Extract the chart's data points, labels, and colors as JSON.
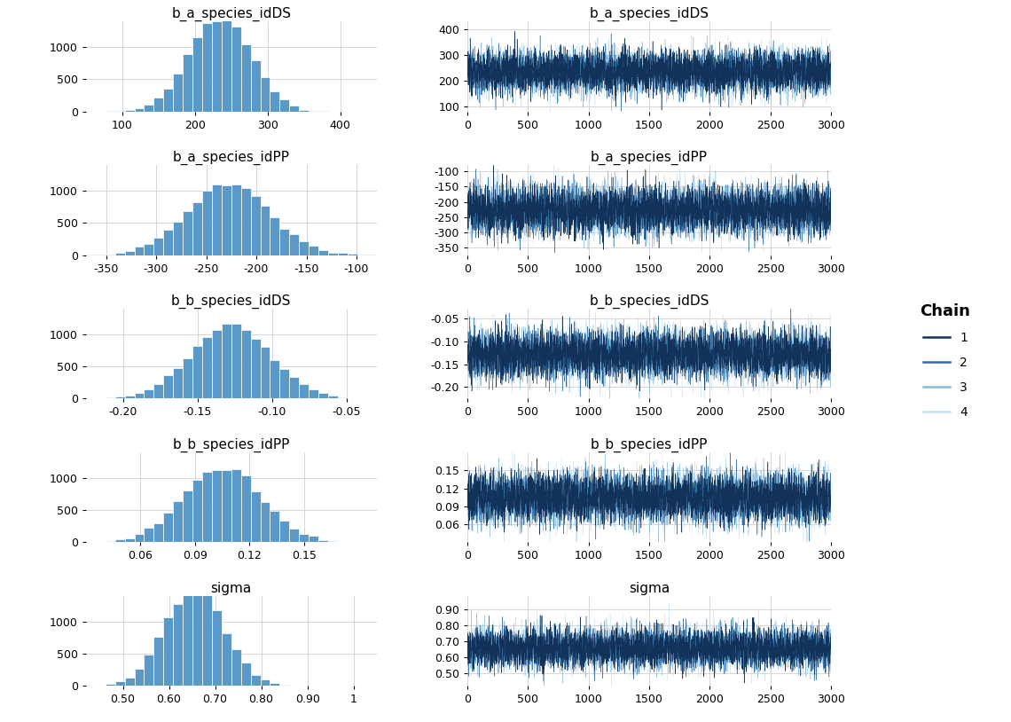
{
  "params": [
    {
      "name": "b_a_species_idDS",
      "hist_mean": 235,
      "hist_std": 40,
      "hist_xlim": [
        50,
        450
      ],
      "hist_xticks": [
        100,
        200,
        300,
        400
      ],
      "hist_ylim": [
        0,
        1400
      ],
      "hist_yticks": [
        0,
        500,
        1000
      ],
      "trace_mean": 235,
      "trace_std": 40,
      "trace_ylim": [
        80,
        430
      ],
      "trace_yticks": [
        100,
        200,
        300,
        400
      ]
    },
    {
      "name": "b_a_species_idPP",
      "hist_mean": -228,
      "hist_std": 38,
      "hist_xlim": [
        -370,
        -80
      ],
      "hist_xticks": [
        -350,
        -300,
        -250,
        -200,
        -150,
        -100
      ],
      "hist_ylim": [
        0,
        1400
      ],
      "hist_yticks": [
        0,
        500,
        1000
      ],
      "trace_mean": -228,
      "trace_std": 38,
      "trace_ylim": [
        -375,
        -80
      ],
      "trace_yticks": [
        -350,
        -300,
        -250,
        -200,
        -150,
        -100
      ]
    },
    {
      "name": "b_b_species_idDS",
      "hist_mean": -0.128,
      "hist_std": 0.025,
      "hist_xlim": [
        -0.225,
        -0.03
      ],
      "hist_xticks": [
        -0.2,
        -0.15,
        -0.1,
        -0.05
      ],
      "hist_ylim": [
        0,
        1400
      ],
      "hist_yticks": [
        0,
        500,
        1000
      ],
      "trace_mean": -0.128,
      "trace_std": 0.025,
      "trace_ylim": [
        -0.225,
        -0.03
      ],
      "trace_yticks": [
        -0.2,
        -0.15,
        -0.1,
        -0.05
      ]
    },
    {
      "name": "b_b_species_idPP",
      "hist_mean": 0.105,
      "hist_std": 0.02,
      "hist_xlim": [
        0.03,
        0.19
      ],
      "hist_xticks": [
        0.06,
        0.09,
        0.12,
        0.15
      ],
      "hist_ylim": [
        0,
        1400
      ],
      "hist_yticks": [
        0,
        500,
        1000
      ],
      "trace_mean": 0.105,
      "trace_std": 0.02,
      "trace_ylim": [
        0.03,
        0.18
      ],
      "trace_yticks": [
        0.06,
        0.09,
        0.12,
        0.15
      ]
    },
    {
      "name": "sigma",
      "hist_mean": 0.655,
      "hist_std": 0.06,
      "hist_xlim": [
        0.42,
        1.05
      ],
      "hist_xticks": [
        0.5,
        0.6,
        0.7,
        0.8,
        0.9,
        1.0
      ],
      "hist_ylim": [
        0,
        1400
      ],
      "hist_yticks": [
        0,
        500,
        1000
      ],
      "trace_mean": 0.655,
      "trace_std": 0.06,
      "trace_ylim": [
        0.42,
        0.98
      ],
      "trace_yticks": [
        0.5,
        0.6,
        0.7,
        0.8,
        0.9
      ]
    }
  ],
  "n_samples": 3000,
  "n_chains": 4,
  "chain_colors": [
    "#12325a",
    "#2e6da4",
    "#88bbda",
    "#c8dff0"
  ],
  "chain_alphas": [
    1.0,
    0.9,
    0.8,
    0.7
  ],
  "hist_color": "#5b9ac8",
  "hist_edgecolor": "#ffffff",
  "background_color": "#ffffff",
  "grid_color": "#d0d0d0",
  "title_fontsize": 11,
  "tick_fontsize": 9,
  "legend_title": "Chain",
  "legend_entries": [
    "1",
    "2",
    "3",
    "4"
  ]
}
